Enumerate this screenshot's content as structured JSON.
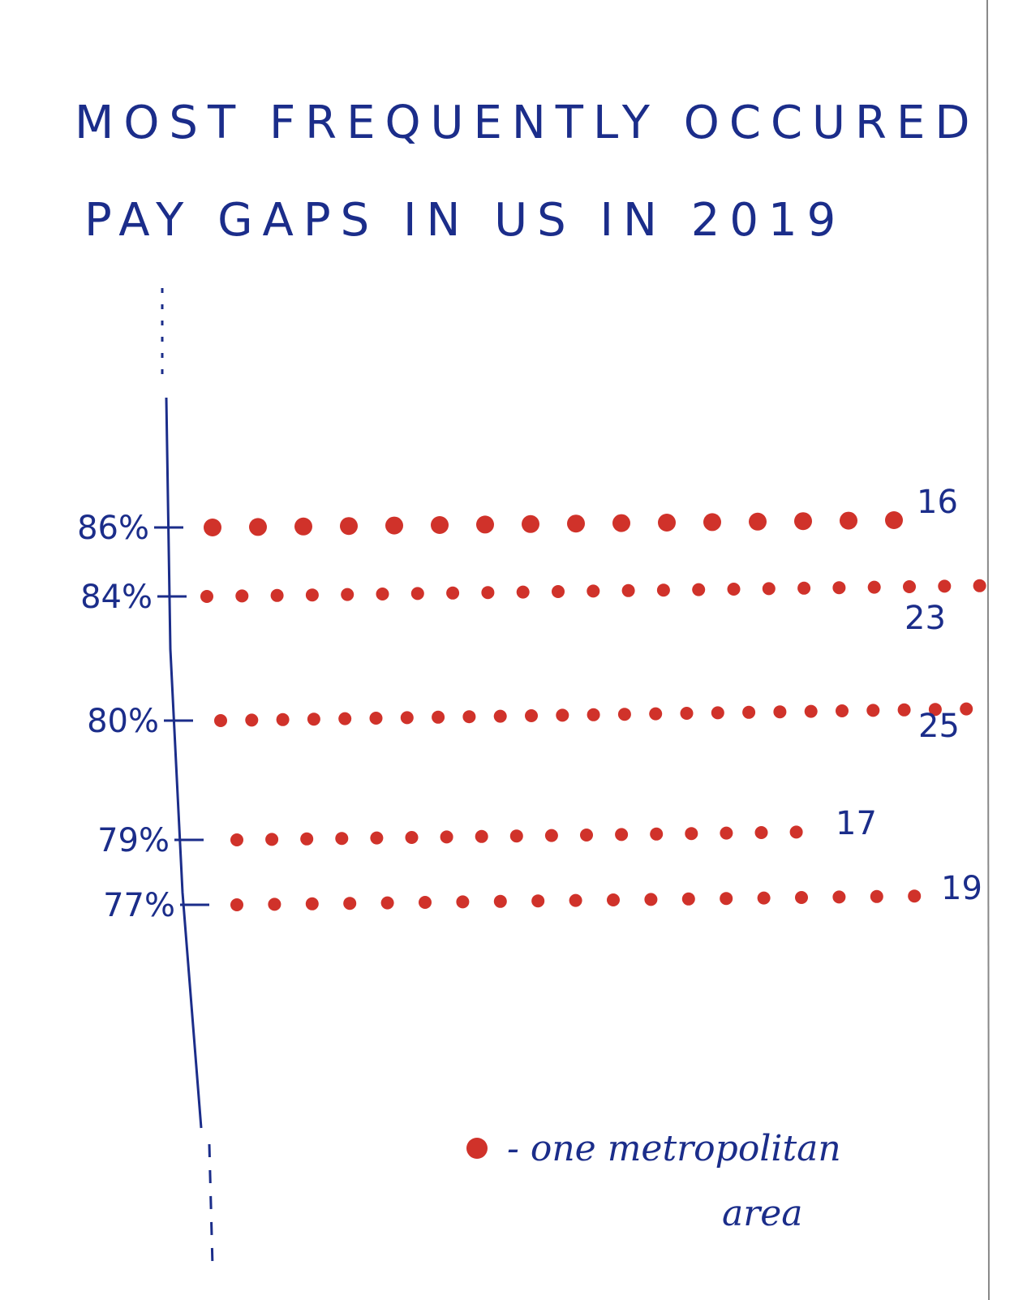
{
  "chart_data": {
    "type": "scatter",
    "title_lines": [
      "MOST FREQUENTLY OCCURED",
      "PAY GAPS IN US IN 2019"
    ],
    "categories": [
      "86%",
      "84%",
      "80%",
      "79%",
      "77%"
    ],
    "values": [
      16,
      23,
      25,
      17,
      19
    ],
    "count_labels": [
      "16",
      "23",
      "25",
      "17",
      "19"
    ],
    "legend": {
      "symbol": "dot",
      "label_lines": [
        "- one metropolitan",
        "area"
      ]
    },
    "colors": {
      "dot": "#d0322a",
      "ink": "#1b2d8a"
    }
  }
}
